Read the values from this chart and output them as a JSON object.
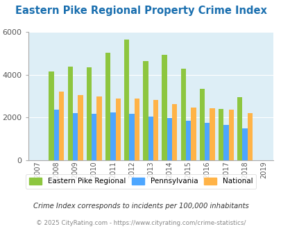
{
  "title": "Eastern Pike Regional Property Crime Index",
  "years": [
    2007,
    2008,
    2009,
    2010,
    2011,
    2012,
    2013,
    2014,
    2015,
    2016,
    2017,
    2018,
    2019
  ],
  "eastern_pike": [
    null,
    4150,
    4380,
    4350,
    5020,
    5650,
    4650,
    4950,
    4300,
    3350,
    2400,
    2950,
    null
  ],
  "pennsylvania": [
    null,
    2380,
    2200,
    2180,
    2240,
    2180,
    2060,
    1970,
    1840,
    1740,
    1650,
    1490,
    null
  ],
  "national": [
    null,
    3200,
    3050,
    2980,
    2900,
    2880,
    2820,
    2640,
    2480,
    2430,
    2360,
    2200,
    null
  ],
  "bar_width": 0.27,
  "ylim": [
    0,
    6000
  ],
  "yticks": [
    0,
    2000,
    4000,
    6000
  ],
  "color_eastern": "#8dc63f",
  "color_pennsylvania": "#4da6ff",
  "color_national": "#ffb347",
  "bg_color": "#ddeef6",
  "title_color": "#1a6faf",
  "legend_label_eastern": "Eastern Pike Regional",
  "legend_label_pennsylvania": "Pennsylvania",
  "legend_label_national": "National",
  "footnote1": "Crime Index corresponds to incidents per 100,000 inhabitants",
  "footnote2": "© 2025 CityRating.com - https://www.cityrating.com/crime-statistics/",
  "footnote1_color": "#333333",
  "footnote2_color": "#888888"
}
